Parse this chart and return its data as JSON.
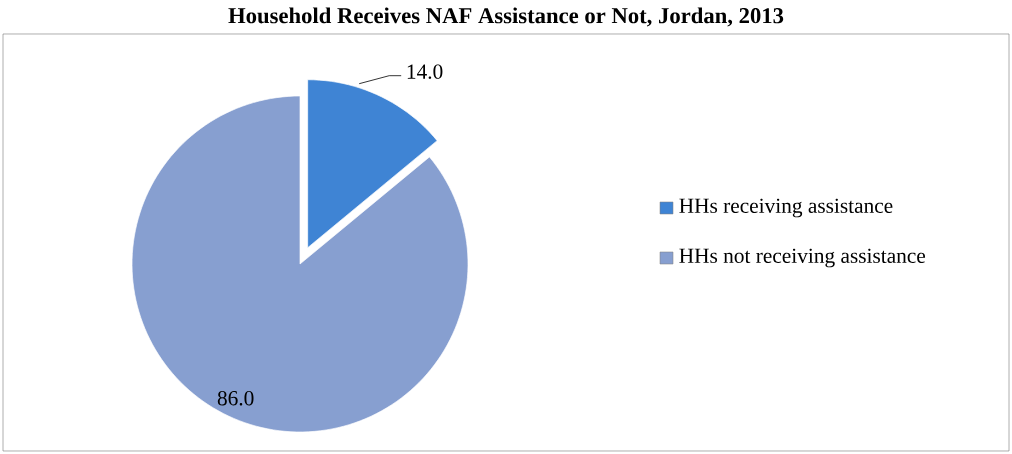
{
  "chart_data": {
    "type": "pie",
    "title": "Household Receives NAF Assistance or Not, Jordan, 2013",
    "categories": [
      "HHs receiving assistance",
      "HHs not receiving assistance"
    ],
    "values": [
      14.0,
      86.0
    ],
    "value_labels": [
      "14.0",
      "86.0"
    ],
    "colors": [
      "#3f84d4",
      "#879fd0"
    ],
    "legend": "right"
  }
}
